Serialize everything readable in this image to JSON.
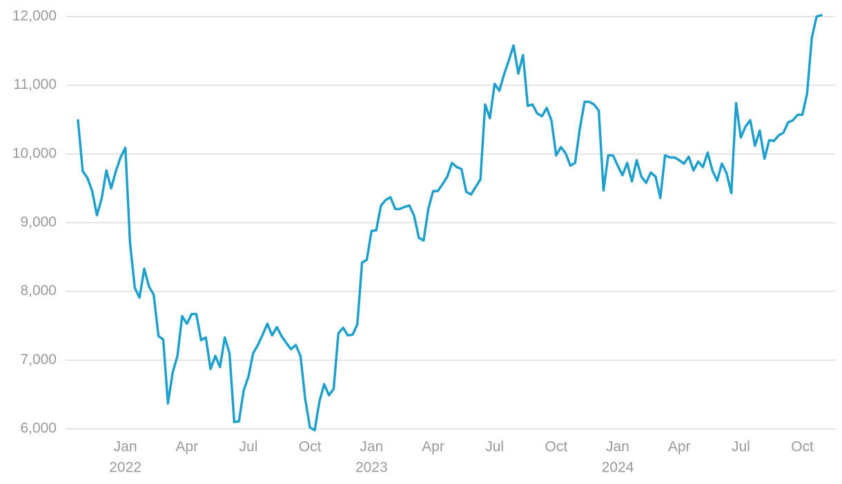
{
  "chart_data": {
    "type": "line",
    "x": [
      "2021-10",
      "2021-10",
      "2021-11",
      "2021-11",
      "2021-11",
      "2021-11",
      "2021-12",
      "2021-12",
      "2021-12",
      "2021-12",
      "2022-01",
      "2022-01",
      "2022-01",
      "2022-01",
      "2022-02",
      "2022-02",
      "2022-02",
      "2022-02",
      "2022-02",
      "2022-03",
      "2022-03",
      "2022-03",
      "2022-03",
      "2022-04",
      "2022-04",
      "2022-04",
      "2022-04",
      "2022-05",
      "2022-05",
      "2022-05",
      "2022-05",
      "2022-05",
      "2022-06",
      "2022-06",
      "2022-06",
      "2022-06",
      "2022-07",
      "2022-07",
      "2022-07",
      "2022-07",
      "2022-08",
      "2022-08",
      "2022-08",
      "2022-08",
      "2022-08",
      "2022-09",
      "2022-09",
      "2022-09",
      "2022-09",
      "2022-10",
      "2022-10",
      "2022-10",
      "2022-10",
      "2022-11",
      "2022-11",
      "2022-11",
      "2022-11",
      "2022-11",
      "2022-12",
      "2022-12",
      "2022-12",
      "2022-12",
      "2023-01",
      "2023-01",
      "2023-01",
      "2023-01",
      "2023-01",
      "2023-02",
      "2023-02",
      "2023-02",
      "2023-02",
      "2023-03",
      "2023-03",
      "2023-03",
      "2023-03",
      "2023-04",
      "2023-04",
      "2023-04",
      "2023-04",
      "2023-05",
      "2023-05",
      "2023-05",
      "2023-05",
      "2023-05",
      "2023-06",
      "2023-06",
      "2023-06",
      "2023-06",
      "2023-07",
      "2023-07",
      "2023-07",
      "2023-07",
      "2023-08",
      "2023-08",
      "2023-08",
      "2023-08",
      "2023-08",
      "2023-09",
      "2023-09",
      "2023-09",
      "2023-09",
      "2023-10",
      "2023-10",
      "2023-10",
      "2023-10",
      "2023-11",
      "2023-11",
      "2023-11",
      "2023-11",
      "2023-11",
      "2023-12",
      "2023-12",
      "2023-12",
      "2023-12",
      "2024-01",
      "2024-01",
      "2024-01",
      "2024-01",
      "2024-02",
      "2024-02",
      "2024-02",
      "2024-02",
      "2024-02",
      "2024-03",
      "2024-03",
      "2024-03",
      "2024-03",
      "2024-04",
      "2024-04",
      "2024-04",
      "2024-04",
      "2024-05",
      "2024-05",
      "2024-05",
      "2024-05",
      "2024-05",
      "2024-06",
      "2024-06",
      "2024-06",
      "2024-06",
      "2024-07",
      "2024-07",
      "2024-07",
      "2024-07",
      "2024-08",
      "2024-08",
      "2024-08",
      "2024-08",
      "2024-08",
      "2024-09",
      "2024-09",
      "2024-09",
      "2024-09",
      "2024-10",
      "2024-10",
      "2024-10",
      "2024-10",
      "2024-10"
    ],
    "series": [
      {
        "color": "#1f9fcb",
        "values": [
          10490,
          9750,
          9650,
          9460,
          9110,
          9350,
          9760,
          9500,
          9750,
          9950,
          10090,
          8700,
          8050,
          7910,
          8330,
          8070,
          7950,
          7350,
          7300,
          6370,
          6820,
          7060,
          7640,
          7530,
          7670,
          7670,
          7290,
          7330,
          6870,
          7060,
          6900,
          7330,
          7100,
          6100,
          6110,
          6560,
          6760,
          7100,
          7220,
          7370,
          7530,
          7360,
          7480,
          7350,
          7250,
          7160,
          7220,
          7060,
          6430,
          6020,
          5980,
          6400,
          6650,
          6490,
          6580,
          7390,
          7470,
          7360,
          7370,
          7520,
          8420,
          8460,
          8880,
          8890,
          9250,
          9330,
          9370,
          9200,
          9200,
          9230,
          9250,
          9100,
          8780,
          8740,
          9200,
          9460,
          9460,
          9560,
          9670,
          9870,
          9810,
          9780,
          9450,
          9410,
          9520,
          9630,
          10720,
          10520,
          11020,
          10920,
          11160,
          11360,
          11580,
          11170,
          11440,
          10700,
          10720,
          10590,
          10550,
          10670,
          10490,
          9980,
          10100,
          10010,
          9830,
          9870,
          10370,
          10760,
          10760,
          10720,
          10630,
          9470,
          9980,
          9980,
          9830,
          9690,
          9870,
          9600,
          9910,
          9670,
          9580,
          9730,
          9670,
          9360,
          9980,
          9950,
          9950,
          9910,
          9860,
          9960,
          9760,
          9890,
          9810,
          10020,
          9760,
          9610,
          9860,
          9720,
          9430,
          10740,
          10240,
          10400,
          10490,
          10120,
          10340,
          9930,
          10200,
          10190,
          10270,
          10310,
          10460,
          10490,
          10570,
          10570,
          10880,
          11690,
          12000,
          12020
        ]
      }
    ],
    "ylim": [
      6000,
      12000
    ],
    "yticks": [
      {
        "value": 6000,
        "label": "6,000"
      },
      {
        "value": 7000,
        "label": "7,000"
      },
      {
        "value": 8000,
        "label": "8,000"
      },
      {
        "value": 9000,
        "label": "9,000"
      },
      {
        "value": 10000,
        "label": "10,000"
      },
      {
        "value": 11000,
        "label": "11,000"
      },
      {
        "value": 12000,
        "label": "12,000"
      }
    ],
    "xticks": [
      {
        "value": "2022-01",
        "label": "Jan",
        "year": "2022"
      },
      {
        "value": "2022-04",
        "label": "Apr"
      },
      {
        "value": "2022-07",
        "label": "Jul"
      },
      {
        "value": "2022-10",
        "label": "Oct"
      },
      {
        "value": "2023-01",
        "label": "Jan",
        "year": "2023"
      },
      {
        "value": "2023-04",
        "label": "Apr"
      },
      {
        "value": "2023-07",
        "label": "Jul"
      },
      {
        "value": "2023-10",
        "label": "Oct"
      },
      {
        "value": "2024-01",
        "label": "Jan",
        "year": "2024"
      },
      {
        "value": "2024-04",
        "label": "Apr"
      },
      {
        "value": "2024-07",
        "label": "Jul"
      },
      {
        "value": "2024-10",
        "label": "Oct"
      }
    ],
    "grid": true
  }
}
